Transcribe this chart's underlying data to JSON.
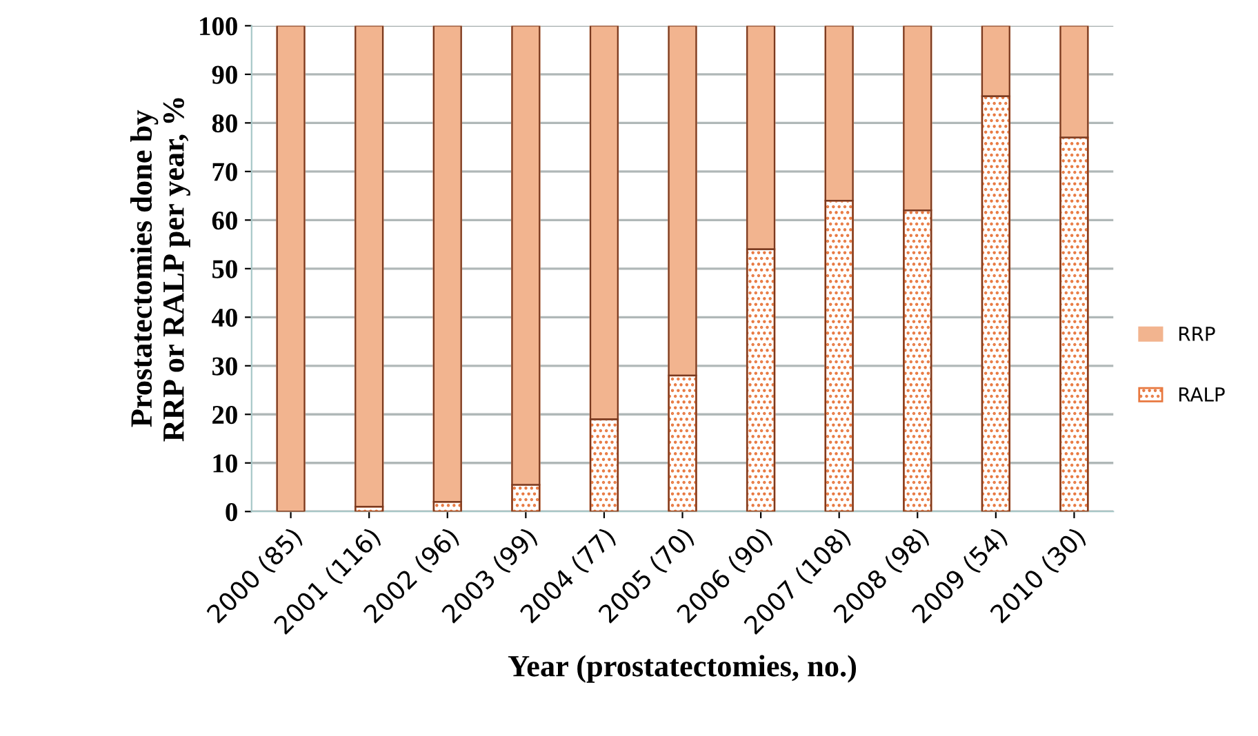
{
  "chart_data": {
    "type": "bar",
    "stacked": true,
    "xlabel": "Year (prostatectomies, no.)",
    "ylabel": "Prostatectomies done by\nRRP or RALP per year, %",
    "categories": [
      "2000 (85)",
      "2001 (116)",
      "2002 (96)",
      "2003 (99)",
      "2004 (77)",
      "2005 (70)",
      "2006 (90)",
      "2007 (108)",
      "2008 (98)",
      "2009 (54)",
      "2010 (30)"
    ],
    "series": [
      {
        "name": "RALP",
        "color": "#e8783f",
        "values": [
          0,
          1,
          2,
          5.5,
          19,
          28,
          54,
          64,
          62,
          85.5,
          77
        ]
      },
      {
        "name": "RRP",
        "color": "#f2b48f",
        "values": [
          100,
          99,
          98,
          94.5,
          81,
          72,
          46,
          36,
          38,
          14.5,
          23
        ]
      }
    ],
    "ylim": [
      0,
      100
    ],
    "yticks": [
      0,
      10,
      20,
      30,
      40,
      50,
      60,
      70,
      80,
      90,
      100
    ],
    "grid": "y",
    "legend": "right"
  }
}
